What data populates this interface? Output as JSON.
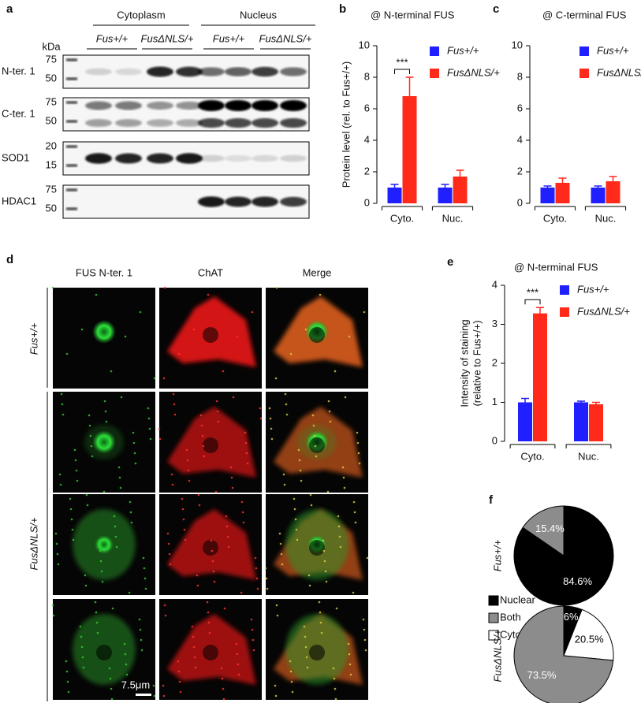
{
  "blot": {
    "panel": "a",
    "groups": [
      "Cytoplasm",
      "Nucleus"
    ],
    "genotypes": [
      "Fus+/+",
      "FusΔNLS/+",
      "Fus+/+",
      "FusΔNLS/+"
    ],
    "unit": "kDa",
    "rows": [
      {
        "label": "N-ter. 1",
        "markers": [
          "75",
          "50"
        ]
      },
      {
        "label": "C-ter. 1",
        "markers": [
          "75",
          "50"
        ]
      },
      {
        "label": "SOD1",
        "markers": [
          "20",
          "15"
        ]
      },
      {
        "label": "HDAC1",
        "markers": [
          "75",
          "50"
        ]
      }
    ]
  },
  "images": {
    "panel": "d",
    "columns": [
      "FUS N-ter. 1",
      "ChAT",
      "Merge"
    ],
    "rows": [
      "Fus+/+",
      "FusΔNLS/+"
    ],
    "scale_bar": "7.5μm"
  },
  "chart_data": [
    {
      "panel": "b",
      "type": "bar",
      "title": "@ N-terminal FUS",
      "ylabel": [
        "Protein level (rel. to Fus+/+)"
      ],
      "categories": [
        "Cyto.",
        "Nuc."
      ],
      "series": [
        {
          "name": "Fus+/+",
          "color": "#1f1fff",
          "values": [
            1,
            1
          ],
          "errors": [
            0.2,
            0.2
          ]
        },
        {
          "name": "FusΔNLS/+",
          "color": "#ff2a1a",
          "values": [
            6.8,
            1.7
          ],
          "errors": [
            1.2,
            0.4
          ]
        }
      ],
      "ylim": [
        0,
        10
      ],
      "yticks": [
        0,
        2,
        4,
        6,
        8,
        10
      ],
      "significance": "***"
    },
    {
      "panel": "c",
      "type": "bar",
      "title": "@ C-terminal FUS",
      "categories": [
        "Cyto.",
        "Nuc."
      ],
      "series": [
        {
          "name": "Fus+/+",
          "color": "#1f1fff",
          "values": [
            1,
            1
          ],
          "errors": [
            0.1,
            0.1
          ]
        },
        {
          "name": "FusΔNLS/+",
          "color": "#ff2a1a",
          "values": [
            1.3,
            1.4
          ],
          "errors": [
            0.3,
            0.3
          ]
        }
      ],
      "ylim": [
        0,
        10
      ],
      "yticks": [
        0,
        2,
        4,
        6,
        8,
        10
      ]
    },
    {
      "panel": "e",
      "type": "bar",
      "title": "@ N-terminal FUS",
      "ylabel": [
        "Intensity of staining",
        "(relative to Fus+/+)"
      ],
      "categories": [
        "Cyto.",
        "Nuc."
      ],
      "series": [
        {
          "name": "Fus+/+",
          "color": "#1f1fff",
          "values": [
            1,
            1
          ],
          "errors": [
            0.1,
            0.03
          ]
        },
        {
          "name": "FusΔNLS/+",
          "color": "#ff2a1a",
          "values": [
            3.28,
            0.95
          ],
          "errors": [
            0.15,
            0.05
          ]
        }
      ],
      "ylim": [
        0,
        4
      ],
      "yticks": [
        0,
        1,
        2,
        3,
        4
      ],
      "significance": "***"
    },
    {
      "panel": "f",
      "type": "pie",
      "categories": [
        "Nuclear",
        "Both",
        "Cytoplasmic"
      ],
      "colors": [
        "#000000",
        "#8c8c8c",
        "#ffffff"
      ],
      "series": [
        {
          "name": "Fus+/+",
          "values": [
            84.6,
            15.4,
            null
          ],
          "value_labels": [
            "84.6%",
            "15.4%",
            null
          ]
        },
        {
          "name": "FusΔNLS/+",
          "values": [
            6,
            73.5,
            20.5
          ],
          "value_labels": [
            "6%",
            "73.5%",
            "20.5%"
          ]
        }
      ]
    }
  ]
}
